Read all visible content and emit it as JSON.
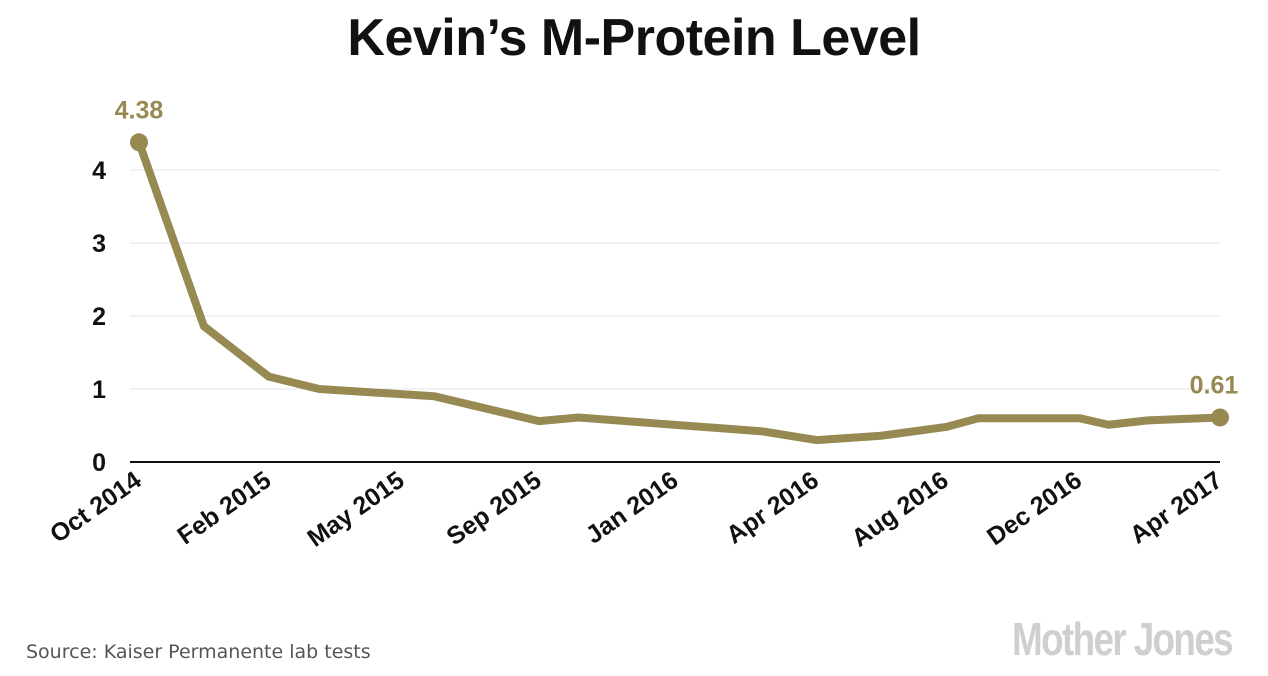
{
  "chart_data": {
    "type": "line",
    "title": "Kevin’s M-Protein Level",
    "xlabel": "",
    "ylabel": "",
    "ylim": [
      0,
      4.4
    ],
    "xlim": [
      0,
      30
    ],
    "x_unit": "months since Oct 2014",
    "grid": true,
    "yticks": [
      0,
      1,
      2,
      3,
      4
    ],
    "xticks": [
      {
        "x": 0,
        "label": "Oct 2014"
      },
      {
        "x": 3.6,
        "label": "Feb 2015"
      },
      {
        "x": 7.3,
        "label": "May 2015"
      },
      {
        "x": 11.1,
        "label": "Sep 2015"
      },
      {
        "x": 14.9,
        "label": "Jan 2016"
      },
      {
        "x": 18.8,
        "label": "Apr 2016"
      },
      {
        "x": 22.4,
        "label": "Aug 2016"
      },
      {
        "x": 26.1,
        "label": "Dec 2016"
      },
      {
        "x": 30,
        "label": "Apr 2017"
      }
    ],
    "series": [
      {
        "name": "M-Protein",
        "color": "#968a52",
        "x": [
          0,
          1.8,
          3.6,
          5.0,
          8.2,
          11.1,
          12.2,
          14.3,
          16.2,
          17.3,
          18.8,
          20.6,
          22.4,
          23.3,
          26.1,
          26.9,
          28.0,
          30
        ],
        "y": [
          4.38,
          1.86,
          1.17,
          1.0,
          0.9,
          0.56,
          0.61,
          0.53,
          0.46,
          0.42,
          0.3,
          0.36,
          0.48,
          0.6,
          0.6,
          0.51,
          0.57,
          0.61
        ]
      }
    ],
    "annotations": [
      {
        "x": 0,
        "y": 4.38,
        "label": "4.38"
      },
      {
        "x": 30,
        "y": 0.61,
        "label": "0.61"
      }
    ]
  },
  "source": "Source: Kaiser Permanente lab tests",
  "logo": "Mother Jones"
}
